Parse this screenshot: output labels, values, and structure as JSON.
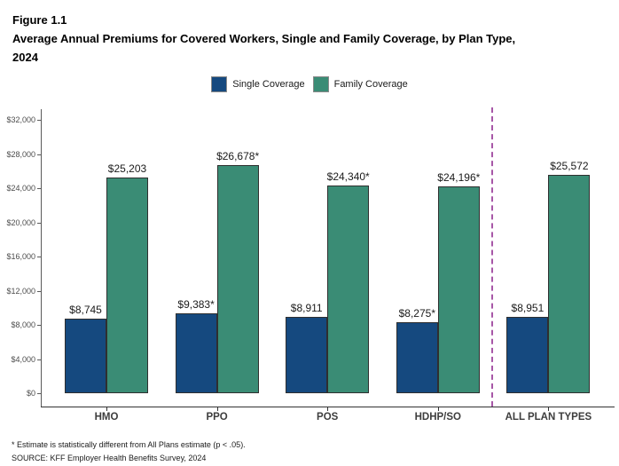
{
  "header": {
    "figure_label": "Figure 1.1",
    "title": "Average Annual Premiums for Covered Workers, Single and Family Coverage, by Plan Type, 2024",
    "title_lines": [
      "Average Annual Premiums for Covered Workers, Single and Family Coverage, by Plan Type,",
      "2024"
    ]
  },
  "footnotes": {
    "note": "* Estimate is statistically different from All Plans estimate (p < .05).",
    "source": "SOURCE: KFF Employer Health Benefits Survey, 2024"
  },
  "chart_data": {
    "type": "bar",
    "title": "Average Annual Premiums for Covered Workers, Single and Family Coverage, by Plan Type, 2024",
    "categories": [
      "HMO",
      "PPO",
      "POS",
      "HDHP/SO",
      "ALL PLAN TYPES"
    ],
    "series": [
      {
        "name": "Single Coverage",
        "color": "#15497f",
        "values": [
          8745,
          9383,
          8911,
          8275,
          8951
        ],
        "labels": [
          "$8,745",
          "$9,383*",
          "$8,911",
          "$8,275*",
          "$8,951"
        ]
      },
      {
        "name": "Family Coverage",
        "color": "#3a8c75",
        "values": [
          25203,
          26678,
          24340,
          24196,
          25572
        ],
        "labels": [
          "$25,203",
          "$26,678*",
          "$24,340*",
          "$24,196*",
          "$25,572"
        ]
      }
    ],
    "xlabel": "",
    "ylabel": "",
    "ylim": [
      0,
      32000
    ],
    "y_tick_interval": 4000,
    "y_ticks": [
      "$0",
      "$4,000",
      "$8,000",
      "$12,000",
      "$16,000",
      "$20,000",
      "$24,000",
      "$28,000",
      "$32,000"
    ],
    "grid": false,
    "legend_position": "top",
    "separator_before_category": "ALL PLAN TYPES",
    "separator_color": "#a757a7",
    "bar_border_color": "#2f2f2f",
    "accent_colors": {
      "single": "#15497f",
      "family": "#3a8c75"
    }
  }
}
